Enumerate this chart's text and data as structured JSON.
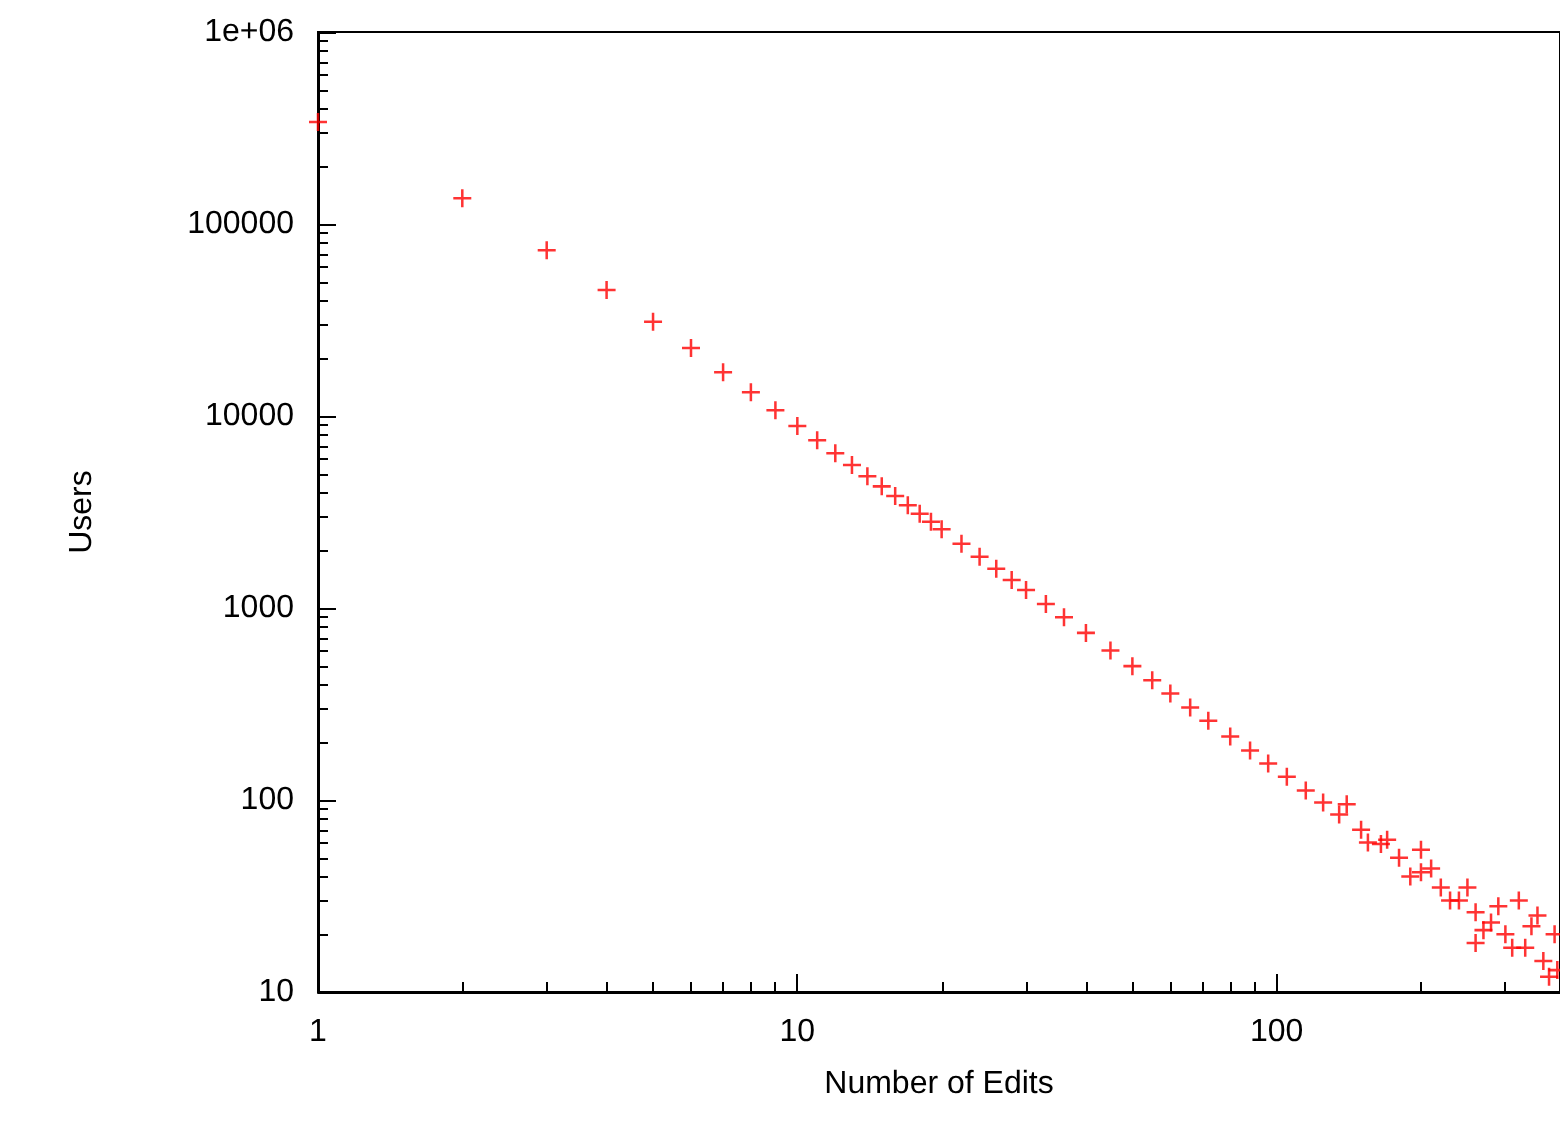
{
  "chart_data": {
    "type": "scatter",
    "xlabel": "Number of Edits",
    "ylabel": "Users",
    "log": "xy",
    "marker": "cross",
    "grid": false,
    "xlim": [
      1,
      390
    ],
    "ylim": [
      10,
      1000000
    ],
    "xticks": [
      1,
      10,
      100
    ],
    "yticks": [
      10,
      100,
      1000,
      10000,
      100000,
      {
        "value": 1000000,
        "label": "1e+06"
      }
    ],
    "series": [
      {
        "color": "#ff0000",
        "x": [
          1,
          2,
          3,
          4,
          5,
          6,
          7,
          8,
          9,
          10,
          11,
          12,
          13,
          14,
          15,
          16,
          17,
          18,
          19,
          20,
          22,
          24,
          26,
          28,
          30,
          33,
          36,
          40,
          45,
          50,
          55,
          60,
          66,
          72,
          80,
          88,
          96,
          105,
          115,
          125,
          135,
          150,
          165,
          180,
          200,
          220,
          240,
          260,
          280,
          300,
          330,
          360,
          385,
          140,
          155,
          170,
          190,
          210,
          230,
          250,
          270,
          290,
          310,
          340,
          370,
          200,
          260,
          320,
          350,
          380
        ],
        "values": [
          340000,
          136000,
          73000,
          45300,
          31000,
          22600,
          16900,
          13300,
          10700,
          8870,
          7480,
          6400,
          5550,
          4860,
          4300,
          3830,
          3430,
          3100,
          2810,
          2570,
          2160,
          1850,
          1600,
          1400,
          1240,
          1050,
          896,
          742,
          601,
          498,
          420,
          359,
          303,
          259,
          214,
          181,
          155,
          132,
          112,
          97,
          84,
          70,
          59,
          50,
          42,
          35,
          30,
          26,
          23,
          20,
          17,
          14.5,
          13,
          95,
          60,
          62,
          40,
          44,
          30,
          35,
          21,
          28,
          17,
          22,
          12,
          55,
          18,
          30,
          25,
          20
        ]
      }
    ]
  }
}
